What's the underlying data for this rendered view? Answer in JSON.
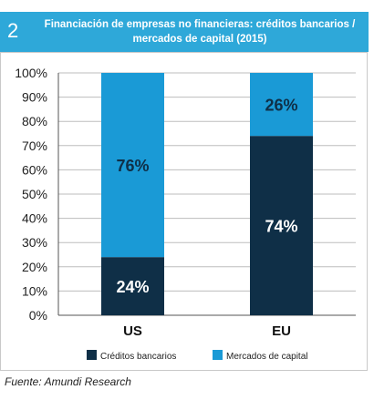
{
  "figure": {
    "number": "2",
    "title": "Financiación de empresas no financieras: créditos bancarios / mercados de capital (2015)"
  },
  "chart_data": {
    "type": "bar",
    "stacked": true,
    "categories": [
      "US",
      "EU"
    ],
    "series": [
      {
        "name": "Créditos bancarios",
        "values": [
          24,
          74
        ],
        "color": "#0f2f47"
      },
      {
        "name": "Mercados de capital",
        "values": [
          76,
          26
        ],
        "color": "#1a9ad6"
      }
    ],
    "data_labels": [
      [
        "24%",
        "76%"
      ],
      [
        "74%",
        "26%"
      ]
    ],
    "ytick_labels": [
      "0%",
      "10%",
      "20%",
      "30%",
      "40%",
      "50%",
      "60%",
      "70%",
      "80%",
      "90%",
      "100%"
    ],
    "ylim": [
      0,
      100
    ],
    "grid": true,
    "legend_position": "bottom"
  },
  "source": "Fuente: Amundi Research"
}
